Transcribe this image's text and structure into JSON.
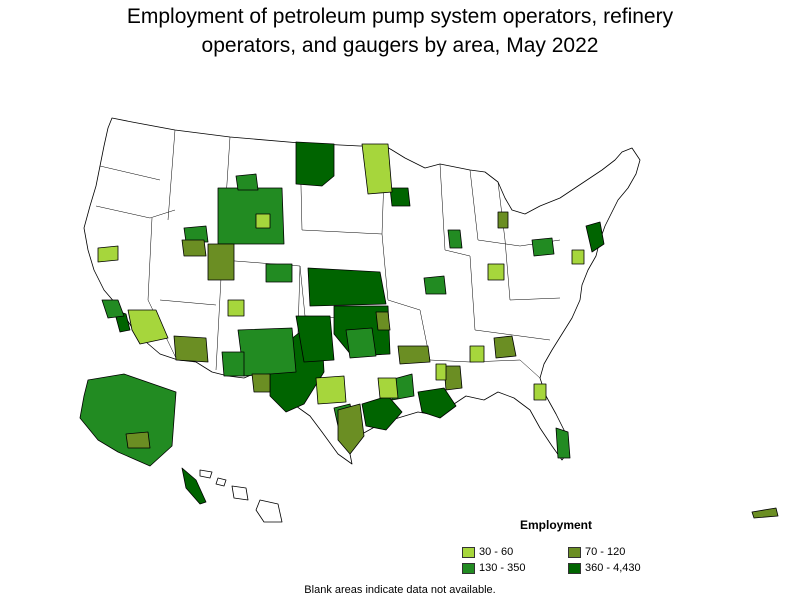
{
  "title_line1": "Employment of petroleum pump system operators, refinery",
  "title_line2": "operators, and gaugers by area, May 2022",
  "legend": {
    "title": "Employment",
    "items": [
      {
        "label": "30 - 60",
        "color": "#a6d63c"
      },
      {
        "label": "70 - 120",
        "color": "#6b8e23"
      },
      {
        "label": "130 - 350",
        "color": "#228b22"
      },
      {
        "label": "360 - 4,430",
        "color": "#006400"
      }
    ]
  },
  "footnote": "Blank areas indicate data not available.",
  "colors": {
    "blank": "#ffffff",
    "border": "#000000"
  }
}
